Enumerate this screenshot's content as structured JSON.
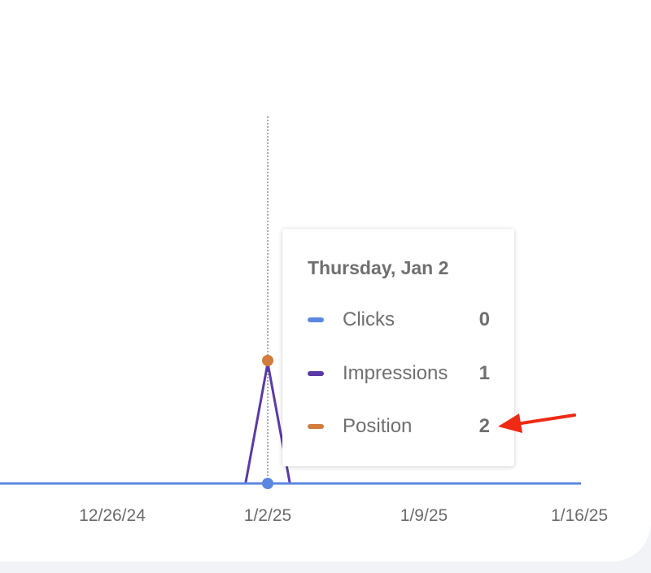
{
  "chart_data": {
    "type": "line",
    "x_tick_labels": [
      "12/26/24",
      "1/2/25",
      "1/9/25",
      "1/16/25"
    ],
    "series": [
      {
        "name": "Clicks",
        "color": "#5b87e0",
        "points": [
          {
            "x": "1/2/25",
            "y": 0
          }
        ]
      },
      {
        "name": "Impressions",
        "color": "#5a3aa8",
        "points": [
          {
            "x": "1/2/25",
            "y": 1
          }
        ]
      },
      {
        "name": "Position",
        "color": "#d27c3e",
        "points": [
          {
            "x": "1/2/25",
            "y": 2
          }
        ]
      }
    ],
    "hover_date": "1/2/25",
    "grid": false
  },
  "tooltip": {
    "title": "Thursday, Jan 2",
    "rows": [
      {
        "label": "Clicks",
        "value": "0",
        "color": "#5b87e0"
      },
      {
        "label": "Impressions",
        "value": "1",
        "color": "#5a3aa8"
      },
      {
        "label": "Position",
        "value": "2",
        "color": "#d27c3e"
      }
    ]
  },
  "annotation": {
    "icon": "red-arrow-icon",
    "color": "#ee2a14"
  }
}
